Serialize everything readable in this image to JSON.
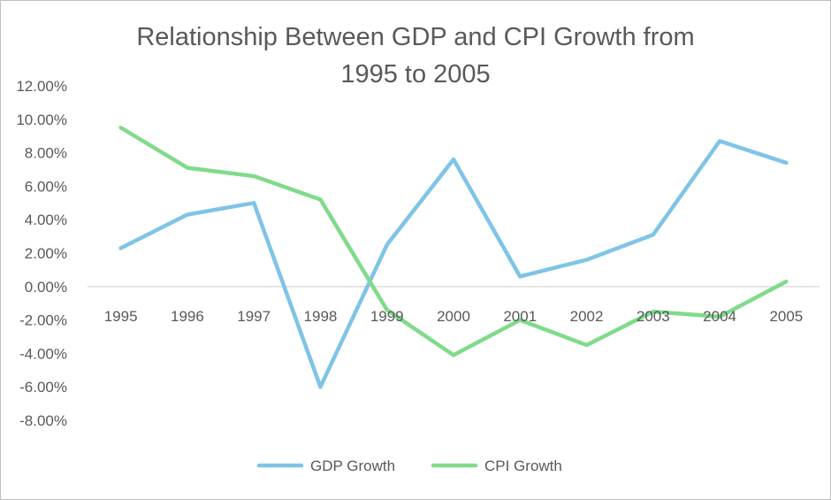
{
  "chart_data": {
    "type": "line",
    "title_lines": [
      "Relationship Between GDP and CPI Growth from",
      "1995 to 2005"
    ],
    "xlabel": "",
    "ylabel": "",
    "categories": [
      "1995",
      "1996",
      "1997",
      "1998",
      "1999",
      "2000",
      "2001",
      "2002",
      "2003",
      "2004",
      "2005"
    ],
    "series": [
      {
        "name": "GDP Growth",
        "color": "#7FC4E6",
        "values": [
          2.3,
          4.3,
          5.0,
          -6.0,
          2.5,
          7.6,
          0.6,
          1.6,
          3.1,
          8.7,
          7.4
        ]
      },
      {
        "name": "CPI Growth",
        "color": "#7FDB8A",
        "values": [
          9.5,
          7.1,
          6.6,
          5.2,
          -1.4,
          -4.1,
          -2.0,
          -3.5,
          -1.5,
          -1.8,
          0.3
        ]
      }
    ],
    "ylim": [
      -8,
      12
    ],
    "yticks": [
      12,
      10,
      8,
      6,
      4,
      2,
      0,
      -2,
      -4,
      -6,
      -8
    ],
    "ytick_labels": [
      "12.00%",
      "10.00%",
      "8.00%",
      "6.00%",
      "4.00%",
      "2.00%",
      "0.00%",
      "-2.00%",
      "-4.00%",
      "-6.00%",
      "-8.00%"
    ],
    "grid": false,
    "legend_position": "bottom"
  }
}
